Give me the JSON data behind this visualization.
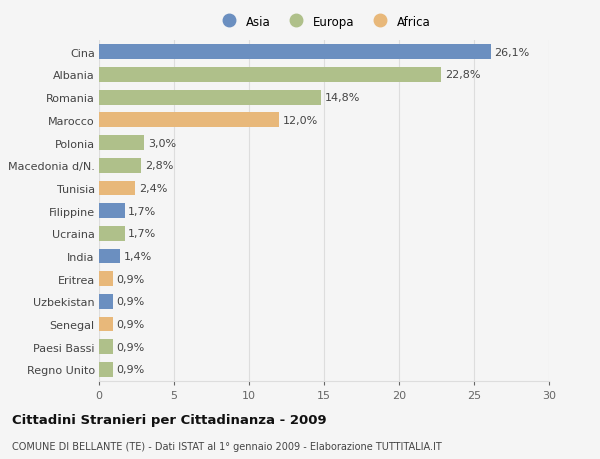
{
  "categories": [
    "Cina",
    "Albania",
    "Romania",
    "Marocco",
    "Polonia",
    "Macedonia d/N.",
    "Tunisia",
    "Filippine",
    "Ucraina",
    "India",
    "Eritrea",
    "Uzbekistan",
    "Senegal",
    "Paesi Bassi",
    "Regno Unito"
  ],
  "values": [
    26.1,
    22.8,
    14.8,
    12.0,
    3.0,
    2.8,
    2.4,
    1.7,
    1.7,
    1.4,
    0.9,
    0.9,
    0.9,
    0.9,
    0.9
  ],
  "labels": [
    "26,1%",
    "22,8%",
    "14,8%",
    "12,0%",
    "3,0%",
    "2,8%",
    "2,4%",
    "1,7%",
    "1,7%",
    "1,4%",
    "0,9%",
    "0,9%",
    "0,9%",
    "0,9%",
    "0,9%"
  ],
  "continents": [
    "Asia",
    "Europa",
    "Europa",
    "Africa",
    "Europa",
    "Europa",
    "Africa",
    "Asia",
    "Europa",
    "Asia",
    "Africa",
    "Asia",
    "Africa",
    "Europa",
    "Europa"
  ],
  "colors": {
    "Asia": "#6b8fc0",
    "Europa": "#afc08a",
    "Africa": "#e8b87a"
  },
  "title_main": "Cittadini Stranieri per Cittadinanza - 2009",
  "title_sub": "COMUNE DI BELLANTE (TE) - Dati ISTAT al 1° gennaio 2009 - Elaborazione TUTTITALIA.IT",
  "xlim": [
    0,
    30
  ],
  "xticks": [
    0,
    5,
    10,
    15,
    20,
    25,
    30
  ],
  "background_color": "#f5f5f5",
  "grid_color": "#dddddd",
  "bar_height": 0.65,
  "label_fontsize": 8,
  "ytick_fontsize": 8,
  "xtick_fontsize": 8,
  "title_fontsize": 9.5,
  "subtitle_fontsize": 7,
  "legend_fontsize": 8.5
}
